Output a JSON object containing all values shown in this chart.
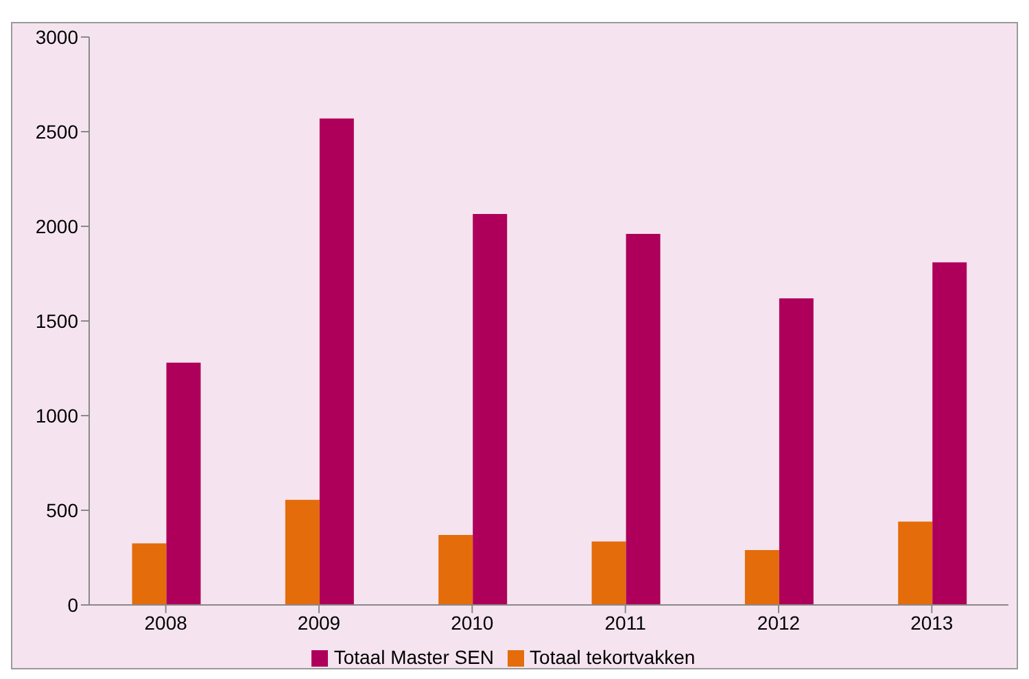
{
  "chart_data": {
    "type": "bar",
    "categories": [
      "2008",
      "2009",
      "2010",
      "2011",
      "2012",
      "2013"
    ],
    "series": [
      {
        "name": "Totaal tekortvakken",
        "color": "#e46c0a",
        "values": [
          325,
          555,
          370,
          335,
          290,
          440
        ]
      },
      {
        "name": "Totaal Master SEN",
        "color": "#ae005a",
        "values": [
          1280,
          2570,
          2065,
          1960,
          1620,
          1810
        ]
      }
    ],
    "ylim": [
      0,
      3000
    ],
    "yticks": [
      0,
      500,
      1000,
      1500,
      2000,
      2500,
      3000
    ],
    "grid": false,
    "legend": "bottom"
  }
}
